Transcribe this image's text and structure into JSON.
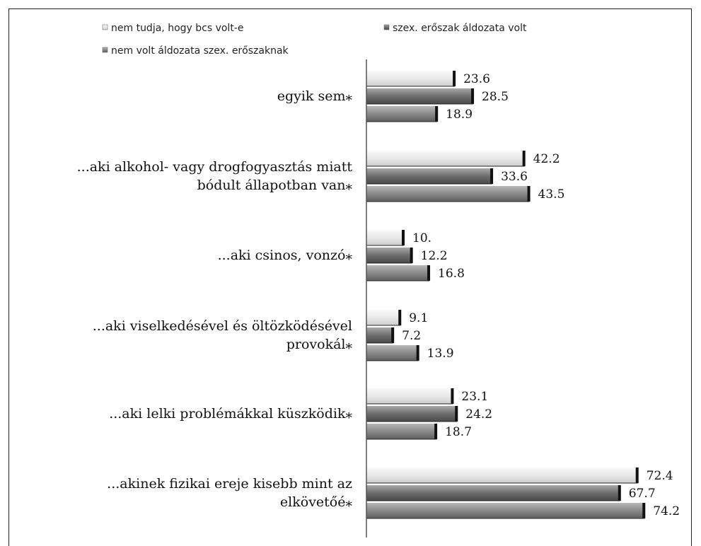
{
  "chart_data": {
    "type": "bar",
    "orientation": "horizontal",
    "categories": [
      [
        "egyik sem⁎"
      ],
      [
        "...aki alkohol- vagy drogfogyasztás miatt",
        "bódult állapotban van⁎"
      ],
      [
        "...aki csinos, vonzó⁎"
      ],
      [
        "...aki viselkedésével és öltözködésével",
        "provokál⁎"
      ],
      [
        "...aki lelki problémákkal küszködik⁎"
      ],
      [
        "...akinek fizikai ereje kisebb mint az",
        "elkövetőé⁎"
      ]
    ],
    "series": [
      {
        "name": "nem tudja, hogy bcs volt-e",
        "color": "#e6e6e6",
        "values": [
          23.6,
          42.2,
          10.0,
          9.1,
          23.1,
          72.4
        ],
        "labels": [
          "23.6",
          "42.2",
          "10.",
          "9.1",
          "23.1",
          "72.4"
        ]
      },
      {
        "name": "szex. erőszak áldozata volt",
        "color": "#7a7a7a",
        "values": [
          28.5,
          33.6,
          12.2,
          7.2,
          24.2,
          67.7
        ],
        "labels": [
          "28.5",
          "33.6",
          "12.2",
          "7.2",
          "24.2",
          "67.7"
        ]
      },
      {
        "name": "nem volt áldozata szex. erőszaknak",
        "color": "#8c8c8c",
        "values": [
          18.9,
          43.5,
          16.8,
          13.9,
          18.7,
          74.2
        ],
        "labels": [
          "18.9",
          "43.5",
          "16.8",
          "13.9",
          "18.7",
          "74.2"
        ]
      }
    ],
    "xlim": [
      0,
      100
    ],
    "grid": false,
    "legend_position": "top"
  }
}
